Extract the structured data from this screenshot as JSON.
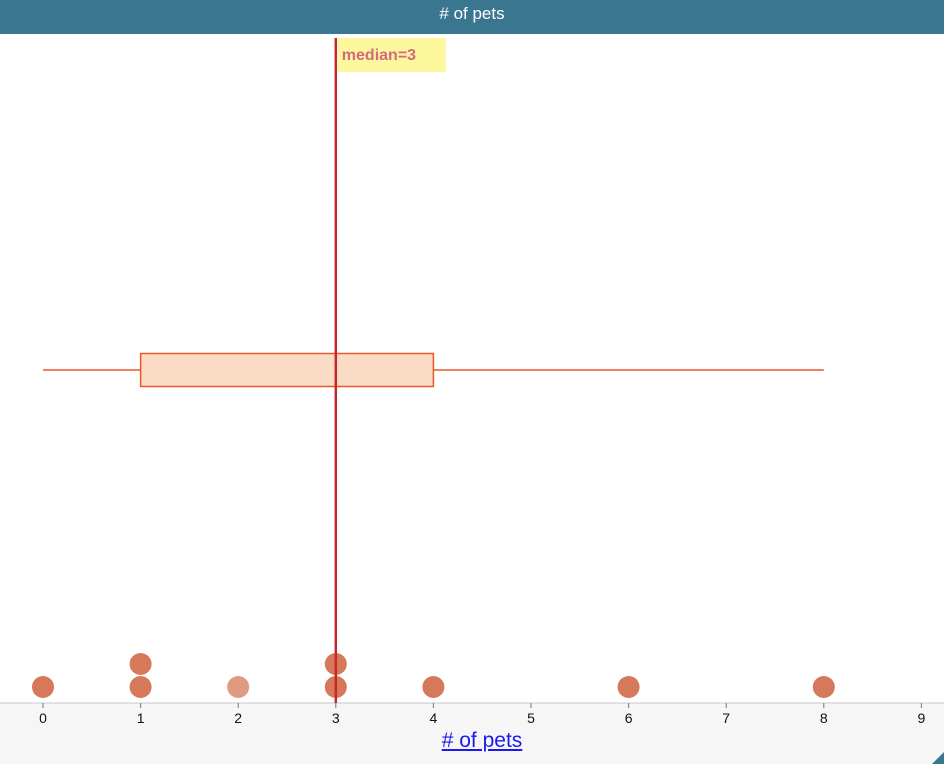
{
  "header": {
    "title": "# of pets"
  },
  "colors": {
    "header_bg": "#3a768f",
    "dot": "#d6785a",
    "dot_light": "#e09a80",
    "box_fill": "#fadbc6",
    "box_stroke": "#e8582a",
    "median_line": "#c62828",
    "median_label_bg": "#fcf79c",
    "median_label_text": "#d46a7e"
  },
  "chart_data": {
    "type": "scatter",
    "title": "# of pets",
    "xlabel": "# of pets",
    "ylabel": "",
    "xlim": [
      -0.2,
      9
    ],
    "ticks": [
      0,
      1,
      2,
      3,
      4,
      5,
      6,
      7,
      8,
      9
    ],
    "tick_labels": [
      "0",
      "1",
      "2",
      "3",
      "4",
      "5",
      "6",
      "7",
      "8",
      "9"
    ],
    "points": [
      0,
      1,
      1,
      2,
      3,
      3,
      4,
      6,
      8
    ],
    "boxplot": {
      "min": 0,
      "q1": 1,
      "median": 3,
      "q3": 4,
      "max": 8
    },
    "median_label": "median=3"
  }
}
